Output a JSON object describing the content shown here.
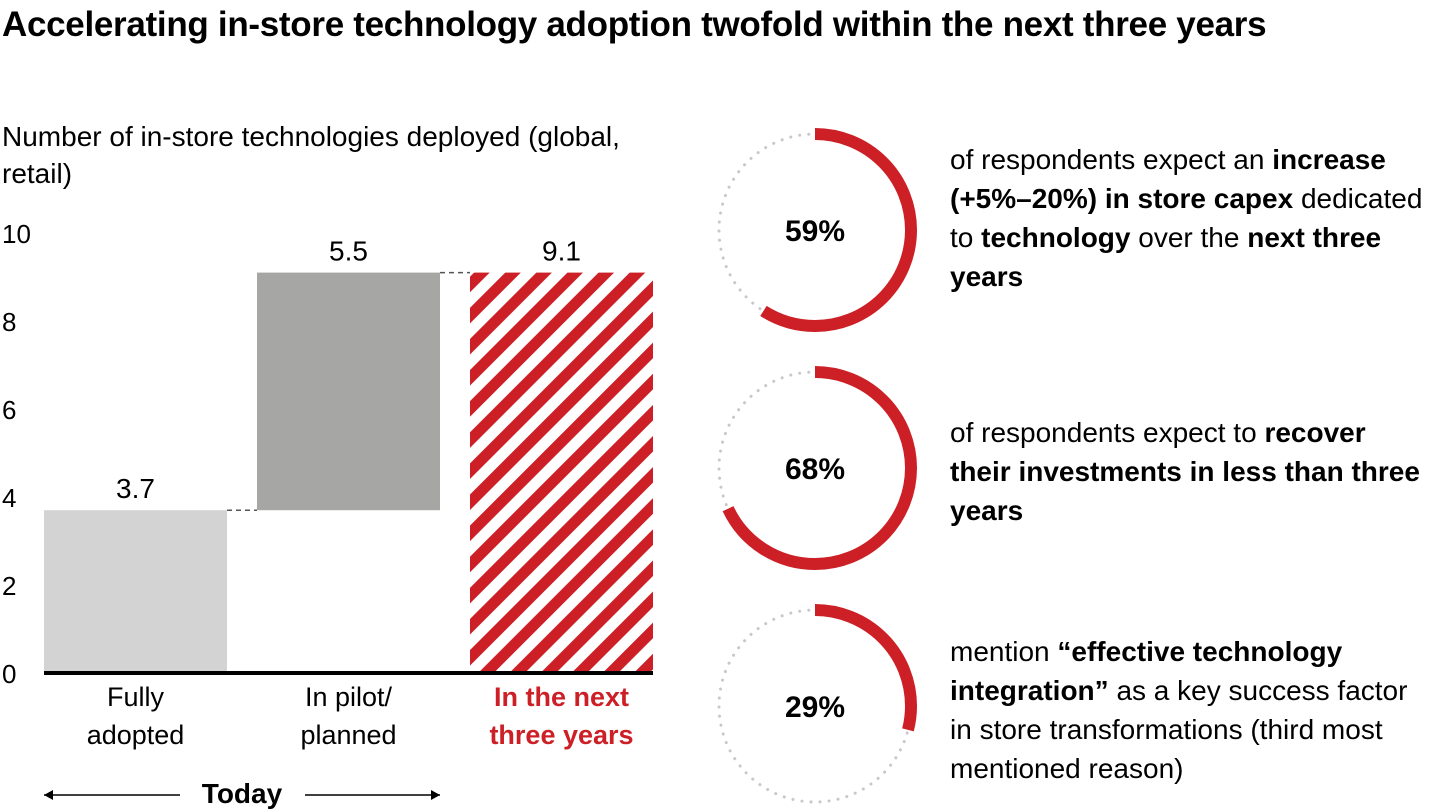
{
  "title": "Accelerating in-store technology adoption twofold within the next three years",
  "chart_data": [
    {
      "type": "bar",
      "subtitle": "Number of in-store technologies deployed (global, retail)",
      "categories": [
        "Fully adopted",
        "In pilot/ planned",
        "In the next three years"
      ],
      "category_lines": [
        [
          "Fully",
          "adopted"
        ],
        [
          "In pilot/",
          "planned"
        ],
        [
          "In the next",
          "three years"
        ]
      ],
      "bars": [
        {
          "base": 0,
          "top": 3.7,
          "label": "3.7",
          "color": "#d3d3d3",
          "pattern": "solid"
        },
        {
          "base": 3.7,
          "top": 9.1,
          "label": "5.5",
          "color": "#a6a6a5",
          "pattern": "solid"
        },
        {
          "base": 0,
          "top": 9.1,
          "label": "9.1",
          "color": "#cc1f26",
          "pattern": "diagonal-stripes"
        }
      ],
      "ylim": [
        0,
        10
      ],
      "yticks": [
        "0",
        "2",
        "4",
        "6",
        "8",
        "10"
      ],
      "grid": false,
      "group_label": "Today",
      "highlight_color": "#cc1f26"
    },
    {
      "type": "donut",
      "items": [
        {
          "value": 59,
          "label": "59%",
          "text": [
            [
              "of respondents expect an ",
              false
            ],
            [
              "increase (+5%–20%) in store capex",
              true
            ],
            [
              " dedicated to ",
              false
            ],
            [
              "technology",
              true
            ],
            [
              " over the ",
              false
            ],
            [
              "next three years",
              true
            ]
          ]
        },
        {
          "value": 68,
          "label": "68%",
          "text": [
            [
              "of respondents expect to ",
              false
            ],
            [
              "recover their investments in less than three years",
              true
            ]
          ]
        },
        {
          "value": 29,
          "label": "29%",
          "text": [
            [
              "mention ",
              false
            ],
            [
              "“effective technology integration”",
              true
            ],
            [
              " as a key success factor in store transformations (third most mentioned reason)",
              false
            ]
          ]
        }
      ],
      "arc_color": "#cc1f26",
      "remainder_color": "#c8c8c8"
    }
  ]
}
